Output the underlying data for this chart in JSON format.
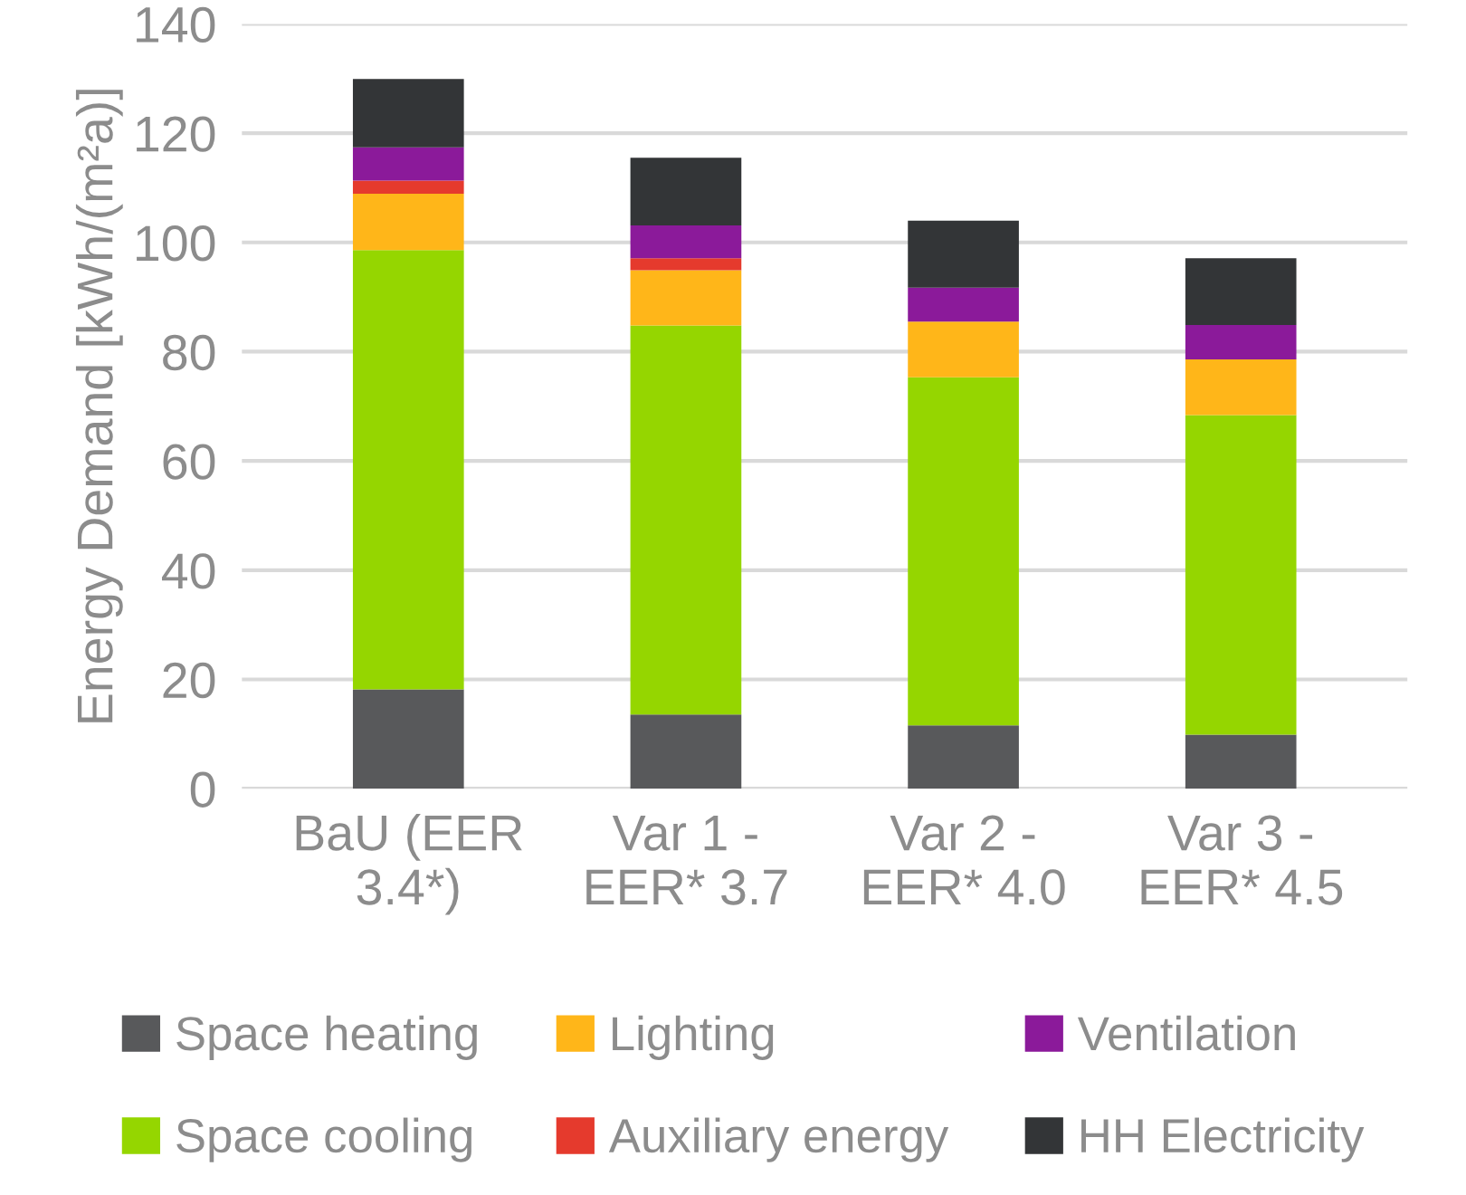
{
  "chart_data": {
    "type": "bar",
    "stacked": true,
    "ylabel": "Energy Demand [kWh/(m²a)]",
    "categories": [
      "BaU (EER\n3.4*)",
      "Var 1 -\nEER* 3.7",
      "Var 2 -\nEER* 4.0",
      "Var 3 -\nEER* 4.5"
    ],
    "series": [
      {
        "name": "Space heating",
        "color": "#58595b",
        "values": [
          18.2,
          13.6,
          11.6,
          9.9
        ]
      },
      {
        "name": "Space cooling",
        "color": "#95d600",
        "values": [
          80.4,
          71.2,
          63.7,
          58.5
        ]
      },
      {
        "name": "Lighting",
        "color": "#ffb619",
        "values": [
          10.3,
          10.1,
          10.2,
          10.2
        ]
      },
      {
        "name": "Auxiliary energy",
        "color": "#e53a2d",
        "values": [
          2.4,
          2.2,
          0,
          0
        ]
      },
      {
        "name": "Ventilation",
        "color": "#8b1a9a",
        "values": [
          6.1,
          6.0,
          6.2,
          6.3
        ]
      },
      {
        "name": "HH Electricity",
        "color": "#333537",
        "values": [
          12.5,
          12.4,
          12.3,
          12.2
        ]
      }
    ],
    "ylim": [
      0,
      140
    ],
    "yticks": [
      0,
      20,
      40,
      60,
      80,
      100,
      120,
      140
    ],
    "grid": "y",
    "legend": "bottom"
  }
}
